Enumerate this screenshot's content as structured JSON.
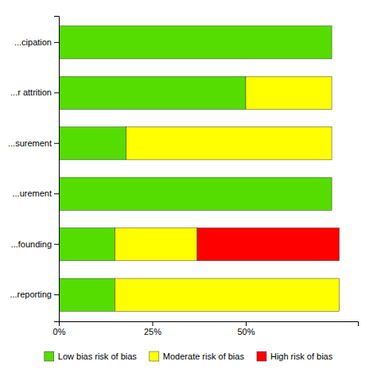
{
  "chart_data": {
    "type": "bar",
    "orientation": "horizontal",
    "stacked": true,
    "categories": [
      "...cipation",
      "...r attrition",
      "...surement",
      "...urement",
      "...founding",
      "...reporting"
    ],
    "series": [
      {
        "name": "Low bias risk of bias",
        "color": "#55dd00",
        "values": [
          73,
          50,
          18,
          73,
          15,
          15
        ]
      },
      {
        "name": "Moderate risk of bias",
        "color": "#ffff00",
        "values": [
          0,
          23,
          55,
          0,
          22,
          60
        ]
      },
      {
        "name": "High risk of bias",
        "color": "#ff0000",
        "values": [
          0,
          0,
          0,
          0,
          38,
          0
        ]
      }
    ],
    "xlim": [
      0,
      80
    ],
    "xticks": [
      {
        "value": 0,
        "label": "0%"
      },
      {
        "value": 25,
        "label": "25%"
      },
      {
        "value": 50,
        "label": "50%"
      }
    ],
    "grid": false,
    "legend": "bottom"
  }
}
